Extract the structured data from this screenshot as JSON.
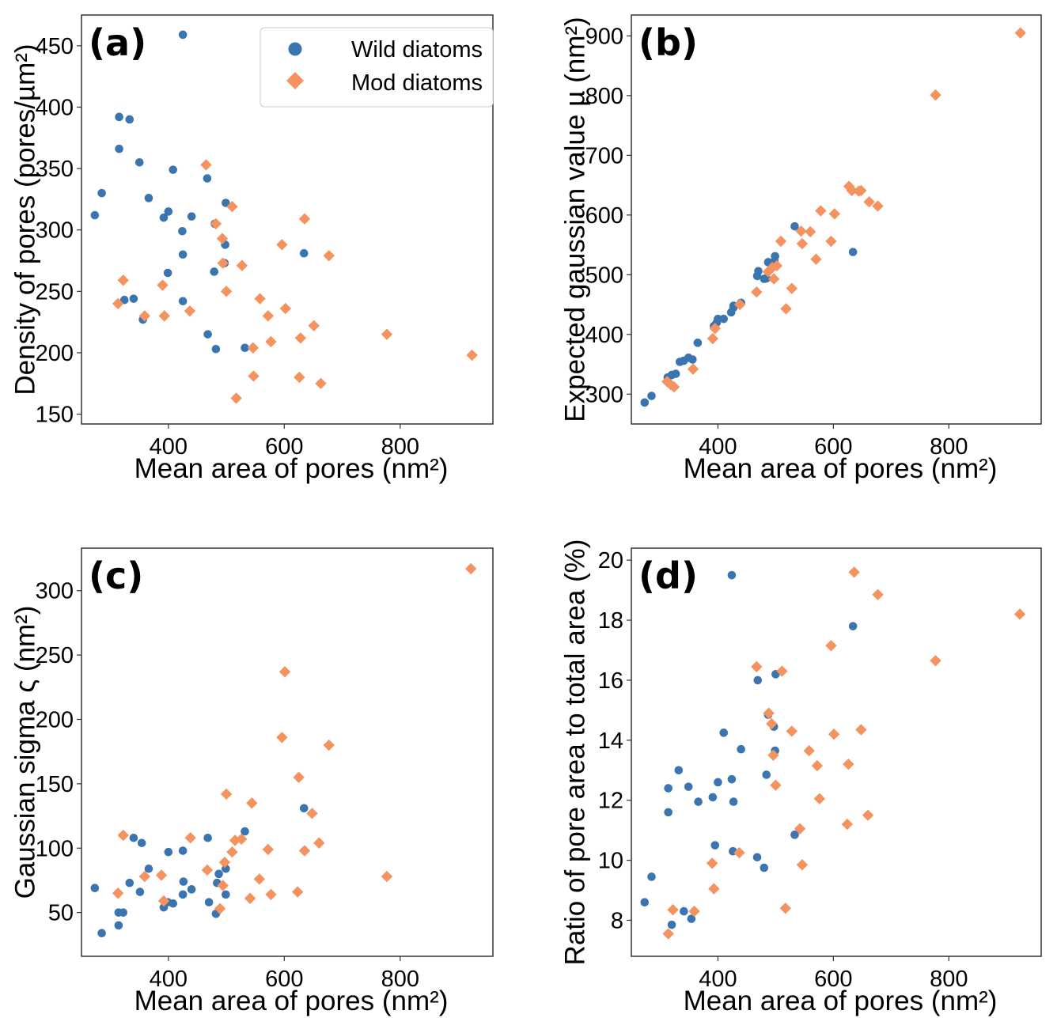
{
  "chart_data": [
    {
      "type": "scatter",
      "panel": "(a)",
      "xlabel": "Mean area of pores (nm²)",
      "ylabel": "Density of pores (pores/µm²)",
      "xlim": [
        250,
        960
      ],
      "ylim": [
        142,
        475
      ],
      "xticks": [
        400,
        600,
        800
      ],
      "yticks": [
        150,
        200,
        250,
        300,
        350,
        400,
        450
      ],
      "legend": {
        "placement": "top-right",
        "entries": [
          "Wild diatoms",
          "Mod diatoms"
        ]
      },
      "series": [
        {
          "name": "Wild diatoms",
          "marker": "circle",
          "color": "#3b75af",
          "points": [
            [
              425,
              459
            ],
            [
              315,
              392
            ],
            [
              333,
              390
            ],
            [
              315,
              366
            ],
            [
              350,
              355
            ],
            [
              408,
              349
            ],
            [
              467,
              342
            ],
            [
              285,
              330
            ],
            [
              366,
              326
            ],
            [
              273,
              312
            ],
            [
              400,
              315
            ],
            [
              392,
              310
            ],
            [
              440,
              311
            ],
            [
              499,
              322
            ],
            [
              424,
              299
            ],
            [
              480,
              305
            ],
            [
              498,
              288
            ],
            [
              425,
              280
            ],
            [
              479,
              266
            ],
            [
              399,
              265
            ],
            [
              497,
              273
            ],
            [
              324,
              243
            ],
            [
              340,
              244
            ],
            [
              425,
              242
            ],
            [
              356,
              227
            ],
            [
              468,
              215
            ],
            [
              482,
              203
            ],
            [
              532,
              204
            ],
            [
              634,
              281
            ]
          ]
        },
        {
          "name": "Mod diatoms",
          "marker": "diamond",
          "color": "#f4935f",
          "points": [
            [
              465,
              353
            ],
            [
              510,
              319
            ],
            [
              635,
              309
            ],
            [
              482,
              305
            ],
            [
              493,
              293
            ],
            [
              596,
              288
            ],
            [
              677,
              279
            ],
            [
              494,
              273
            ],
            [
              527,
              271
            ],
            [
              322,
              259
            ],
            [
              390,
              255
            ],
            [
              500,
              250
            ],
            [
              558,
              244
            ],
            [
              313,
              240
            ],
            [
              359,
              230
            ],
            [
              393,
              230
            ],
            [
              437,
              234
            ],
            [
              602,
              236
            ],
            [
              572,
              230
            ],
            [
              651,
              222
            ],
            [
              577,
              209
            ],
            [
              628,
              212
            ],
            [
              546,
              204
            ],
            [
              777,
              215
            ],
            [
              924,
              198
            ],
            [
              547,
              181
            ],
            [
              626,
              180
            ],
            [
              663,
              175
            ],
            [
              517,
              163
            ]
          ]
        }
      ]
    },
    {
      "type": "scatter",
      "panel": "(b)",
      "xlabel": "Mean area of pores (nm²)",
      "ylabel": "Expected gaussian value µ (nm²)",
      "xlim": [
        250,
        960
      ],
      "ylim": [
        250,
        935
      ],
      "xticks": [
        400,
        600,
        800
      ],
      "yticks": [
        300,
        400,
        500,
        600,
        700,
        800,
        900
      ],
      "series": [
        {
          "name": "Wild diatoms",
          "marker": "circle",
          "color": "#3b75af",
          "points": [
            [
              273,
              286
            ],
            [
              285,
              297
            ],
            [
              313,
              328
            ],
            [
              320,
              332
            ],
            [
              327,
              334
            ],
            [
              334,
              354
            ],
            [
              341,
              356
            ],
            [
              349,
              361
            ],
            [
              356,
              358
            ],
            [
              365,
              386
            ],
            [
              393,
              414
            ],
            [
              398,
              420
            ],
            [
              400,
              426
            ],
            [
              410,
              426
            ],
            [
              423,
              437
            ],
            [
              427,
              445
            ],
            [
              427,
              448
            ],
            [
              440,
              453
            ],
            [
              468,
              498
            ],
            [
              470,
              506
            ],
            [
              480,
              493
            ],
            [
              484,
              494
            ],
            [
              487,
              521
            ],
            [
              498,
              523
            ],
            [
              499,
              531
            ],
            [
              533,
              581
            ],
            [
              634,
              538
            ]
          ]
        },
        {
          "name": "Mod diatoms",
          "marker": "diamond",
          "color": "#f4935f",
          "points": [
            [
              312,
              321
            ],
            [
              318,
              316
            ],
            [
              324,
              312
            ],
            [
              357,
              342
            ],
            [
              391,
              393
            ],
            [
              395,
              410
            ],
            [
              438,
              450
            ],
            [
              467,
              471
            ],
            [
              487,
              505
            ],
            [
              494,
              512
            ],
            [
              497,
              493
            ],
            [
              502,
              515
            ],
            [
              509,
              556
            ],
            [
              518,
              443
            ],
            [
              528,
              477
            ],
            [
              544,
              573
            ],
            [
              546,
              552
            ],
            [
              560,
              572
            ],
            [
              570,
              526
            ],
            [
              578,
              607
            ],
            [
              596,
              556
            ],
            [
              602,
              602
            ],
            [
              627,
              648
            ],
            [
              632,
              641
            ],
            [
              644,
              640
            ],
            [
              648,
              641
            ],
            [
              662,
              622
            ],
            [
              677,
              615
            ],
            [
              777,
              801
            ],
            [
              924,
              905
            ]
          ]
        }
      ]
    },
    {
      "type": "scatter",
      "panel": "(c)",
      "xlabel": "Mean area of pores (nm²)",
      "ylabel": "Gaussian sigma ς (nm²)",
      "xlim": [
        250,
        960
      ],
      "ylim": [
        16,
        333
      ],
      "xticks": [
        400,
        600,
        800
      ],
      "yticks": [
        50,
        100,
        150,
        200,
        250,
        300
      ],
      "series": [
        {
          "name": "Wild diatoms",
          "marker": "circle",
          "color": "#3b75af",
          "points": [
            [
              273,
              69
            ],
            [
              285,
              34
            ],
            [
              314,
              40
            ],
            [
              314,
              50
            ],
            [
              322,
              50
            ],
            [
              333,
              73
            ],
            [
              340,
              108
            ],
            [
              351,
              66
            ],
            [
              354,
              104
            ],
            [
              366,
              84
            ],
            [
              392,
              54
            ],
            [
              399,
              58
            ],
            [
              400,
              97
            ],
            [
              408,
              57
            ],
            [
              425,
              64
            ],
            [
              425,
              98
            ],
            [
              426,
              74
            ],
            [
              440,
              68
            ],
            [
              468,
              108
            ],
            [
              470,
              58
            ],
            [
              482,
              49
            ],
            [
              484,
              73
            ],
            [
              487,
              80
            ],
            [
              499,
              84
            ],
            [
              499,
              64
            ],
            [
              532,
              113
            ],
            [
              634,
              131
            ]
          ]
        },
        {
          "name": "Mod diatoms",
          "marker": "diamond",
          "color": "#f4935f",
          "points": [
            [
              313,
              65
            ],
            [
              322,
              110
            ],
            [
              359,
              78
            ],
            [
              388,
              79
            ],
            [
              392,
              59
            ],
            [
              438,
              108
            ],
            [
              467,
              83
            ],
            [
              489,
              53
            ],
            [
              494,
              71
            ],
            [
              497,
              89
            ],
            [
              500,
              142
            ],
            [
              510,
              97
            ],
            [
              515,
              106
            ],
            [
              526,
              107
            ],
            [
              541,
              61
            ],
            [
              544,
              135
            ],
            [
              557,
              76
            ],
            [
              572,
              99
            ],
            [
              577,
              64
            ],
            [
              596,
              186
            ],
            [
              601,
              237
            ],
            [
              623,
              66
            ],
            [
              625,
              155
            ],
            [
              635,
              98
            ],
            [
              648,
              127
            ],
            [
              660,
              104
            ],
            [
              677,
              180
            ],
            [
              777,
              78
            ],
            [
              922,
              317
            ]
          ]
        }
      ]
    },
    {
      "type": "scatter",
      "panel": "(d)",
      "xlabel": "Mean area of pores (nm²)",
      "ylabel": "Ratio of pore area to total area (%)",
      "xlim": [
        250,
        960
      ],
      "ylim": [
        6.8,
        20.4
      ],
      "xticks": [
        400,
        600,
        800
      ],
      "yticks": [
        8,
        10,
        12,
        14,
        16,
        18,
        20
      ],
      "series": [
        {
          "name": "Wild diatoms",
          "marker": "circle",
          "color": "#3b75af",
          "points": [
            [
              273,
              8.6
            ],
            [
              285,
              9.45
            ],
            [
              314,
              11.6
            ],
            [
              314,
              12.4
            ],
            [
              320,
              7.85
            ],
            [
              332,
              13.0
            ],
            [
              341,
              8.3
            ],
            [
              349,
              12.45
            ],
            [
              354,
              8.05
            ],
            [
              366,
              11.95
            ],
            [
              391,
              12.1
            ],
            [
              395,
              10.5
            ],
            [
              400,
              12.6
            ],
            [
              410,
              14.25
            ],
            [
              424,
              12.7
            ],
            [
              426,
              10.3
            ],
            [
              427,
              11.95
            ],
            [
              440,
              13.7
            ],
            [
              468,
              10.1
            ],
            [
              469,
              16.0
            ],
            [
              480,
              9.75
            ],
            [
              484,
              12.85
            ],
            [
              487,
              14.85
            ],
            [
              497,
              14.45
            ],
            [
              499,
              13.65
            ],
            [
              500,
              16.2
            ],
            [
              533,
              10.85
            ],
            [
              634,
              17.8
            ],
            [
              424,
              19.5
            ]
          ]
        },
        {
          "name": "Mod diatoms",
          "marker": "diamond",
          "color": "#f4935f",
          "points": [
            [
              314,
              7.55
            ],
            [
              322,
              8.35
            ],
            [
              359,
              8.3
            ],
            [
              390,
              9.9
            ],
            [
              393,
              9.05
            ],
            [
              437,
              10.25
            ],
            [
              467,
              16.45
            ],
            [
              488,
              14.9
            ],
            [
              493,
              14.55
            ],
            [
              496,
              13.5
            ],
            [
              500,
              12.5
            ],
            [
              511,
              16.3
            ],
            [
              517,
              8.4
            ],
            [
              528,
              14.3
            ],
            [
              542,
              11.05
            ],
            [
              546,
              9.85
            ],
            [
              558,
              13.65
            ],
            [
              572,
              13.15
            ],
            [
              576,
              12.05
            ],
            [
              596,
              17.15
            ],
            [
              601,
              14.2
            ],
            [
              624,
              11.2
            ],
            [
              626,
              13.2
            ],
            [
              636,
              19.6
            ],
            [
              648,
              14.35
            ],
            [
              660,
              11.5
            ],
            [
              677,
              18.85
            ],
            [
              777,
              16.65
            ],
            [
              923,
              18.2
            ]
          ]
        }
      ]
    }
  ]
}
